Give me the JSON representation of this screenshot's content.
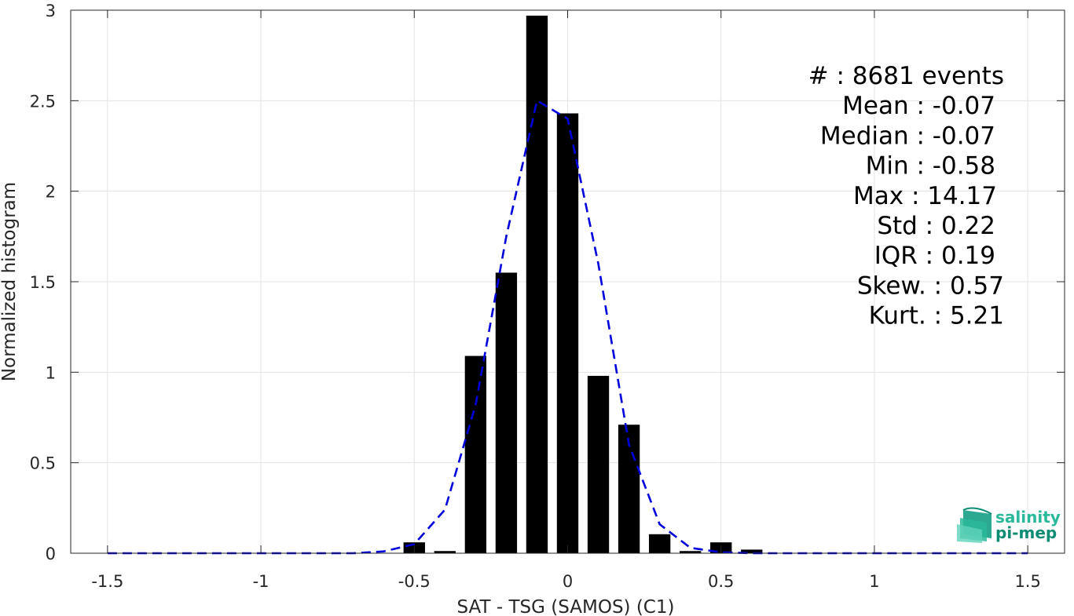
{
  "chart_data": {
    "type": "bar",
    "xlabel": "SAT - TSG (SAMOS) (C1)",
    "ylabel": "Normalized histogram",
    "xlim": [
      -1.62,
      1.62
    ],
    "ylim": [
      0,
      3
    ],
    "xticks": [
      -1.5,
      -1,
      -0.5,
      0,
      0.5,
      1,
      1.5
    ],
    "xtick_labels": [
      "-1.5",
      "-1",
      "-0.5",
      "0",
      "0.5",
      "1",
      "1.5"
    ],
    "yticks": [
      0,
      0.5,
      1,
      1.5,
      2,
      2.5,
      3
    ],
    "ytick_labels": [
      "0",
      "0.5",
      "1",
      "1.5",
      "2",
      "2.5",
      "3"
    ],
    "grid": true,
    "bar_width": 0.07,
    "bars": {
      "x": [
        -0.5,
        -0.4,
        -0.3,
        -0.2,
        -0.1,
        0.0,
        0.1,
        0.2,
        0.3,
        0.4,
        0.5,
        0.6
      ],
      "values": [
        0.06,
        0.012,
        1.09,
        1.55,
        2.97,
        2.43,
        0.98,
        0.71,
        0.105,
        0.012,
        0.06,
        0.02
      ]
    },
    "fit_curve": {
      "style": "dashed",
      "x": [
        -1.5,
        -1.4,
        -1.3,
        -1.2,
        -1.1,
        -1.0,
        -0.9,
        -0.8,
        -0.7,
        -0.6,
        -0.5,
        -0.4,
        -0.3,
        -0.2,
        -0.1,
        0.0,
        0.1,
        0.2,
        0.3,
        0.4,
        0.5,
        0.6,
        0.7,
        0.8,
        0.9,
        1.0,
        1.1,
        1.2,
        1.3,
        1.4,
        1.5
      ],
      "y": [
        0,
        0,
        0,
        0,
        0,
        0,
        0,
        0,
        0,
        0.01,
        0.05,
        0.24,
        0.82,
        1.75,
        2.5,
        2.4,
        1.6,
        0.6,
        0.16,
        0.03,
        0.005,
        0,
        0,
        0,
        0,
        0,
        0,
        0,
        0,
        0,
        0
      ]
    },
    "annotations": [
      "#  : 8681 events",
      "Mean : -0.07",
      "Median : -0.07",
      "Min : -0.58",
      "Max : 14.17",
      "Std : 0.22",
      "IQR : 0.19",
      "Skew. : 0.57",
      "Kurt. : 5.21"
    ]
  },
  "colors": {
    "bars": "#000000",
    "fit_curve": "#0000dd",
    "grid": "#e3e3e3",
    "axis": "#262626",
    "logo_dark": "#0e8c73",
    "logo_light": "#2ab89a"
  },
  "logo": {
    "line1": "salinity",
    "line2": "pi-mep"
  }
}
